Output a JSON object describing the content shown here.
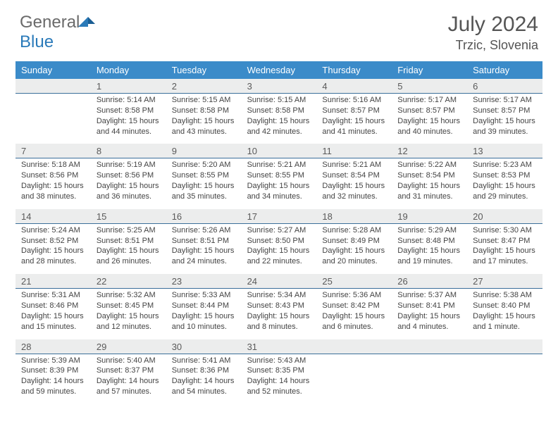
{
  "logo": {
    "general": "General",
    "blue": "Blue"
  },
  "title": "July 2024",
  "location": "Trzic, Slovenia",
  "colors": {
    "header_bg": "#3b8bc9",
    "header_text": "#ffffff",
    "daynum_bg": "#eceded",
    "daynum_border": "#3b6f9a",
    "body_text": "#444444",
    "title_text": "#555555",
    "logo_gray": "#6a6a6a",
    "logo_blue": "#2a7ab9"
  },
  "weekdays": [
    "Sunday",
    "Monday",
    "Tuesday",
    "Wednesday",
    "Thursday",
    "Friday",
    "Saturday"
  ],
  "weeks": [
    [
      {
        "n": "",
        "sr": "",
        "ss": "",
        "dl": ""
      },
      {
        "n": "1",
        "sr": "Sunrise: 5:14 AM",
        "ss": "Sunset: 8:58 PM",
        "dl": "Daylight: 15 hours and 44 minutes."
      },
      {
        "n": "2",
        "sr": "Sunrise: 5:15 AM",
        "ss": "Sunset: 8:58 PM",
        "dl": "Daylight: 15 hours and 43 minutes."
      },
      {
        "n": "3",
        "sr": "Sunrise: 5:15 AM",
        "ss": "Sunset: 8:58 PM",
        "dl": "Daylight: 15 hours and 42 minutes."
      },
      {
        "n": "4",
        "sr": "Sunrise: 5:16 AM",
        "ss": "Sunset: 8:57 PM",
        "dl": "Daylight: 15 hours and 41 minutes."
      },
      {
        "n": "5",
        "sr": "Sunrise: 5:17 AM",
        "ss": "Sunset: 8:57 PM",
        "dl": "Daylight: 15 hours and 40 minutes."
      },
      {
        "n": "6",
        "sr": "Sunrise: 5:17 AM",
        "ss": "Sunset: 8:57 PM",
        "dl": "Daylight: 15 hours and 39 minutes."
      }
    ],
    [
      {
        "n": "7",
        "sr": "Sunrise: 5:18 AM",
        "ss": "Sunset: 8:56 PM",
        "dl": "Daylight: 15 hours and 38 minutes."
      },
      {
        "n": "8",
        "sr": "Sunrise: 5:19 AM",
        "ss": "Sunset: 8:56 PM",
        "dl": "Daylight: 15 hours and 36 minutes."
      },
      {
        "n": "9",
        "sr": "Sunrise: 5:20 AM",
        "ss": "Sunset: 8:55 PM",
        "dl": "Daylight: 15 hours and 35 minutes."
      },
      {
        "n": "10",
        "sr": "Sunrise: 5:21 AM",
        "ss": "Sunset: 8:55 PM",
        "dl": "Daylight: 15 hours and 34 minutes."
      },
      {
        "n": "11",
        "sr": "Sunrise: 5:21 AM",
        "ss": "Sunset: 8:54 PM",
        "dl": "Daylight: 15 hours and 32 minutes."
      },
      {
        "n": "12",
        "sr": "Sunrise: 5:22 AM",
        "ss": "Sunset: 8:54 PM",
        "dl": "Daylight: 15 hours and 31 minutes."
      },
      {
        "n": "13",
        "sr": "Sunrise: 5:23 AM",
        "ss": "Sunset: 8:53 PM",
        "dl": "Daylight: 15 hours and 29 minutes."
      }
    ],
    [
      {
        "n": "14",
        "sr": "Sunrise: 5:24 AM",
        "ss": "Sunset: 8:52 PM",
        "dl": "Daylight: 15 hours and 28 minutes."
      },
      {
        "n": "15",
        "sr": "Sunrise: 5:25 AM",
        "ss": "Sunset: 8:51 PM",
        "dl": "Daylight: 15 hours and 26 minutes."
      },
      {
        "n": "16",
        "sr": "Sunrise: 5:26 AM",
        "ss": "Sunset: 8:51 PM",
        "dl": "Daylight: 15 hours and 24 minutes."
      },
      {
        "n": "17",
        "sr": "Sunrise: 5:27 AM",
        "ss": "Sunset: 8:50 PM",
        "dl": "Daylight: 15 hours and 22 minutes."
      },
      {
        "n": "18",
        "sr": "Sunrise: 5:28 AM",
        "ss": "Sunset: 8:49 PM",
        "dl": "Daylight: 15 hours and 20 minutes."
      },
      {
        "n": "19",
        "sr": "Sunrise: 5:29 AM",
        "ss": "Sunset: 8:48 PM",
        "dl": "Daylight: 15 hours and 19 minutes."
      },
      {
        "n": "20",
        "sr": "Sunrise: 5:30 AM",
        "ss": "Sunset: 8:47 PM",
        "dl": "Daylight: 15 hours and 17 minutes."
      }
    ],
    [
      {
        "n": "21",
        "sr": "Sunrise: 5:31 AM",
        "ss": "Sunset: 8:46 PM",
        "dl": "Daylight: 15 hours and 15 minutes."
      },
      {
        "n": "22",
        "sr": "Sunrise: 5:32 AM",
        "ss": "Sunset: 8:45 PM",
        "dl": "Daylight: 15 hours and 12 minutes."
      },
      {
        "n": "23",
        "sr": "Sunrise: 5:33 AM",
        "ss": "Sunset: 8:44 PM",
        "dl": "Daylight: 15 hours and 10 minutes."
      },
      {
        "n": "24",
        "sr": "Sunrise: 5:34 AM",
        "ss": "Sunset: 8:43 PM",
        "dl": "Daylight: 15 hours and 8 minutes."
      },
      {
        "n": "25",
        "sr": "Sunrise: 5:36 AM",
        "ss": "Sunset: 8:42 PM",
        "dl": "Daylight: 15 hours and 6 minutes."
      },
      {
        "n": "26",
        "sr": "Sunrise: 5:37 AM",
        "ss": "Sunset: 8:41 PM",
        "dl": "Daylight: 15 hours and 4 minutes."
      },
      {
        "n": "27",
        "sr": "Sunrise: 5:38 AM",
        "ss": "Sunset: 8:40 PM",
        "dl": "Daylight: 15 hours and 1 minute."
      }
    ],
    [
      {
        "n": "28",
        "sr": "Sunrise: 5:39 AM",
        "ss": "Sunset: 8:39 PM",
        "dl": "Daylight: 14 hours and 59 minutes."
      },
      {
        "n": "29",
        "sr": "Sunrise: 5:40 AM",
        "ss": "Sunset: 8:37 PM",
        "dl": "Daylight: 14 hours and 57 minutes."
      },
      {
        "n": "30",
        "sr": "Sunrise: 5:41 AM",
        "ss": "Sunset: 8:36 PM",
        "dl": "Daylight: 14 hours and 54 minutes."
      },
      {
        "n": "31",
        "sr": "Sunrise: 5:43 AM",
        "ss": "Sunset: 8:35 PM",
        "dl": "Daylight: 14 hours and 52 minutes."
      },
      {
        "n": "",
        "sr": "",
        "ss": "",
        "dl": ""
      },
      {
        "n": "",
        "sr": "",
        "ss": "",
        "dl": ""
      },
      {
        "n": "",
        "sr": "",
        "ss": "",
        "dl": ""
      }
    ]
  ]
}
